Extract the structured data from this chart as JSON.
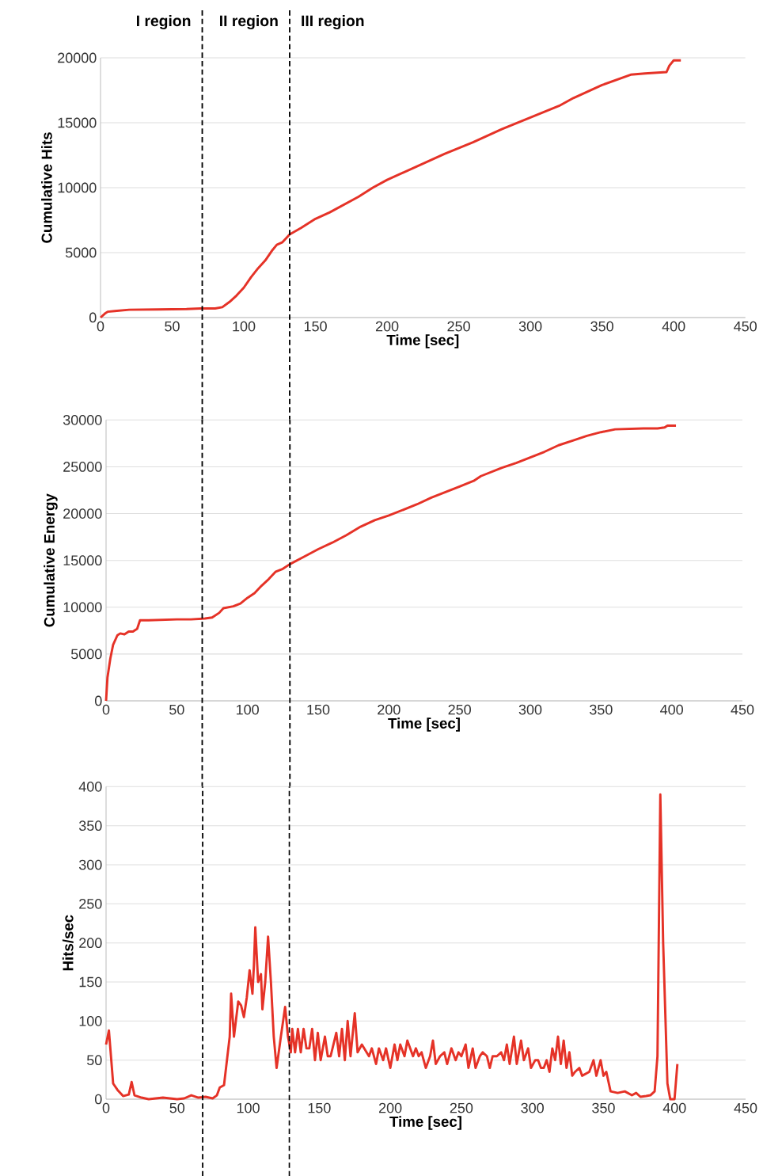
{
  "chart_data": [
    {
      "type": "line",
      "ylabel": "Cumulative Hits",
      "xlabel": "Time [sec]",
      "xlim": [
        0,
        450
      ],
      "ylim": [
        0,
        20000
      ],
      "xticks": [
        0,
        50,
        100,
        150,
        200,
        250,
        300,
        350,
        400,
        450
      ],
      "yticks": [
        0,
        5000,
        10000,
        15000,
        20000
      ],
      "grid": "y",
      "series": [
        {
          "color": "#e53227",
          "x": [
            0,
            3,
            5,
            10,
            20,
            40,
            60,
            70,
            80,
            85,
            90,
            95,
            100,
            105,
            110,
            115,
            120,
            123,
            127,
            132,
            140,
            150,
            160,
            170,
            180,
            190,
            200,
            220,
            240,
            260,
            280,
            300,
            320,
            330,
            340,
            350,
            360,
            370,
            380,
            395,
            397,
            400,
            405
          ],
          "values": [
            0,
            300,
            450,
            500,
            600,
            620,
            650,
            700,
            700,
            800,
            1200,
            1700,
            2300,
            3100,
            3800,
            4400,
            5200,
            5600,
            5800,
            6400,
            6900,
            7600,
            8100,
            8700,
            9300,
            10000,
            10600,
            11600,
            12600,
            13500,
            14500,
            15400,
            16300,
            16900,
            17400,
            17900,
            18300,
            18700,
            18800,
            18900,
            19400,
            19800,
            19800
          ]
        }
      ],
      "ref_lines": [
        {
          "axis": "x",
          "value": 71,
          "line_style": "dashed",
          "color": "#000000"
        },
        {
          "axis": "x",
          "value": 132,
          "line_style": "dashed",
          "color": "#000000"
        }
      ],
      "annotations": [
        "I region",
        "II region",
        "III region"
      ]
    },
    {
      "type": "line",
      "ylabel": "Cumulative Energy",
      "xlabel": "Time [sec]",
      "xlim": [
        0,
        450
      ],
      "ylim": [
        0,
        30000
      ],
      "xticks": [
        0,
        50,
        100,
        150,
        200,
        250,
        300,
        350,
        400,
        450
      ],
      "yticks": [
        0,
        5000,
        10000,
        15000,
        20000,
        25000,
        30000
      ],
      "grid": "y",
      "series": [
        {
          "color": "#e53227",
          "x": [
            0,
            1,
            3,
            5,
            8,
            10,
            13,
            16,
            19,
            22,
            24,
            30,
            50,
            60,
            70,
            75,
            80,
            83,
            90,
            95,
            100,
            105,
            110,
            115,
            120,
            125,
            130,
            140,
            150,
            160,
            170,
            180,
            190,
            200,
            210,
            220,
            230,
            240,
            250,
            260,
            265,
            280,
            290,
            300,
            310,
            320,
            330,
            340,
            350,
            360,
            380,
            390,
            395,
            397,
            403
          ],
          "values": [
            0,
            2500,
            4500,
            6000,
            7000,
            7200,
            7100,
            7400,
            7400,
            7700,
            8600,
            8600,
            8700,
            8700,
            8800,
            8900,
            9400,
            9900,
            10100,
            10400,
            11000,
            11500,
            12300,
            13000,
            13800,
            14100,
            14600,
            15400,
            16200,
            16900,
            17700,
            18600,
            19300,
            19800,
            20400,
            21000,
            21700,
            22300,
            22900,
            23500,
            24000,
            24900,
            25400,
            26000,
            26600,
            27300,
            27800,
            28300,
            28700,
            29000,
            29100,
            29100,
            29200,
            29400,
            29400
          ]
        }
      ],
      "ref_lines": [
        {
          "axis": "x",
          "value": 68,
          "line_style": "dashed",
          "color": "#000000"
        },
        {
          "axis": "x",
          "value": 130,
          "line_style": "dashed",
          "color": "#000000"
        }
      ]
    },
    {
      "type": "line",
      "ylabel": "Hits/sec",
      "xlabel": "Time [sec]",
      "xlim": [
        0,
        450
      ],
      "ylim": [
        0,
        400
      ],
      "xticks": [
        0,
        50,
        100,
        150,
        200,
        250,
        300,
        350,
        400,
        450
      ],
      "yticks": [
        0,
        50,
        100,
        150,
        200,
        250,
        300,
        350,
        400
      ],
      "grid": "y",
      "series": [
        {
          "color": "#e53227",
          "x": [
            0,
            2,
            5,
            8,
            12,
            16,
            18,
            20,
            25,
            30,
            40,
            50,
            55,
            60,
            65,
            70,
            75,
            78,
            80,
            83,
            87,
            88,
            90,
            93,
            95,
            97,
            99,
            101,
            103,
            104,
            105,
            107,
            109,
            110,
            112,
            114,
            116,
            118,
            120,
            123,
            126,
            128,
            130,
            131,
            133,
            135,
            137,
            139,
            141,
            143,
            145,
            147,
            149,
            151,
            154,
            156,
            158,
            162,
            164,
            166,
            168,
            170,
            172,
            175,
            177,
            180,
            185,
            187,
            190,
            192,
            195,
            197,
            200,
            203,
            205,
            207,
            210,
            212,
            214,
            216,
            218,
            220,
            222,
            225,
            228,
            230,
            232,
            235,
            238,
            240,
            243,
            246,
            248,
            250,
            253,
            255,
            258,
            260,
            263,
            265,
            268,
            270,
            272,
            275,
            278,
            280,
            282,
            284,
            287,
            289,
            292,
            294,
            297,
            299,
            302,
            304,
            306,
            308,
            310,
            312,
            314,
            316,
            318,
            320,
            322,
            324,
            326,
            328,
            330,
            333,
            335,
            340,
            343,
            345,
            348,
            350,
            352,
            355,
            360,
            365,
            370,
            373,
            376,
            380,
            383,
            386,
            388,
            390,
            392,
            395,
            397,
            400,
            402
          ],
          "values": [
            70,
            88,
            20,
            12,
            4,
            6,
            22,
            5,
            2,
            0,
            2,
            0,
            1,
            5,
            2,
            3,
            1,
            5,
            15,
            18,
            80,
            135,
            80,
            125,
            120,
            105,
            130,
            165,
            135,
            170,
            220,
            150,
            160,
            115,
            150,
            208,
            150,
            80,
            40,
            80,
            118,
            80,
            60,
            90,
            60,
            90,
            60,
            90,
            65,
            65,
            90,
            50,
            85,
            50,
            80,
            55,
            55,
            85,
            55,
            90,
            50,
            100,
            55,
            110,
            60,
            70,
            55,
            65,
            45,
            65,
            50,
            65,
            40,
            70,
            50,
            70,
            55,
            75,
            65,
            55,
            65,
            55,
            60,
            40,
            55,
            75,
            45,
            55,
            60,
            45,
            65,
            50,
            60,
            55,
            70,
            40,
            65,
            40,
            55,
            60,
            55,
            40,
            55,
            55,
            60,
            50,
            70,
            45,
            80,
            45,
            75,
            50,
            65,
            40,
            50,
            50,
            40,
            40,
            50,
            35,
            65,
            50,
            80,
            45,
            75,
            40,
            60,
            30,
            35,
            40,
            30,
            35,
            50,
            30,
            50,
            30,
            35,
            10,
            8,
            10,
            5,
            8,
            3,
            4,
            5,
            10,
            55,
            390,
            200,
            20,
            0,
            0,
            45
          ]
        }
      ],
      "ref_lines": [
        {
          "axis": "x",
          "value": 68,
          "line_style": "dashed",
          "color": "#000000"
        },
        {
          "axis": "x",
          "value": 129,
          "line_style": "dashed",
          "color": "#000000"
        }
      ]
    }
  ]
}
